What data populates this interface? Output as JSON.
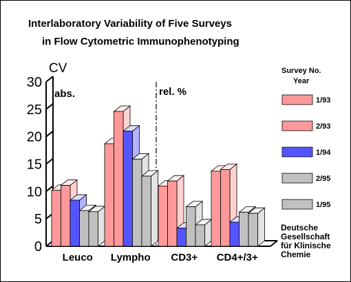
{
  "chart_data": {
    "type": "bar",
    "title_lines": [
      "Interlaboratory Variability of Five Surveys",
      "in Flow Cytometric Immunophenotyping"
    ],
    "ylabel": "CV",
    "ylim": [
      0,
      30
    ],
    "yticks": [
      0,
      5,
      10,
      15,
      20,
      25,
      30
    ],
    "categories": [
      "Leuco",
      "Lympho",
      "CD3+",
      "CD4+/3+"
    ],
    "region_labels": [
      "abs.",
      "rel. %"
    ],
    "legend_title_lines": [
      "Survey No.",
      "Year"
    ],
    "series": [
      {
        "name": "1/93",
        "color": "#ff9999",
        "values": [
          10.2,
          18.7,
          11.0,
          13.7
        ]
      },
      {
        "name": "2/93",
        "color": "#ff9999",
        "values": [
          11.1,
          24.6,
          11.9,
          14.0
        ]
      },
      {
        "name": "1/94",
        "color": "#5555ff",
        "values": [
          8.4,
          21.0,
          3.3,
          4.4
        ]
      },
      {
        "name": "2/95",
        "color": "#c0c0c0",
        "values": [
          6.5,
          15.9,
          7.2,
          6.2
        ]
      },
      {
        "name": "1/95",
        "color": "#c0c0c0",
        "values": [
          6.3,
          12.8,
          3.9,
          6.0
        ]
      }
    ],
    "source_lines": [
      "Deutsche",
      "Gesellschaft",
      "für Klinische",
      "Chemie"
    ]
  }
}
